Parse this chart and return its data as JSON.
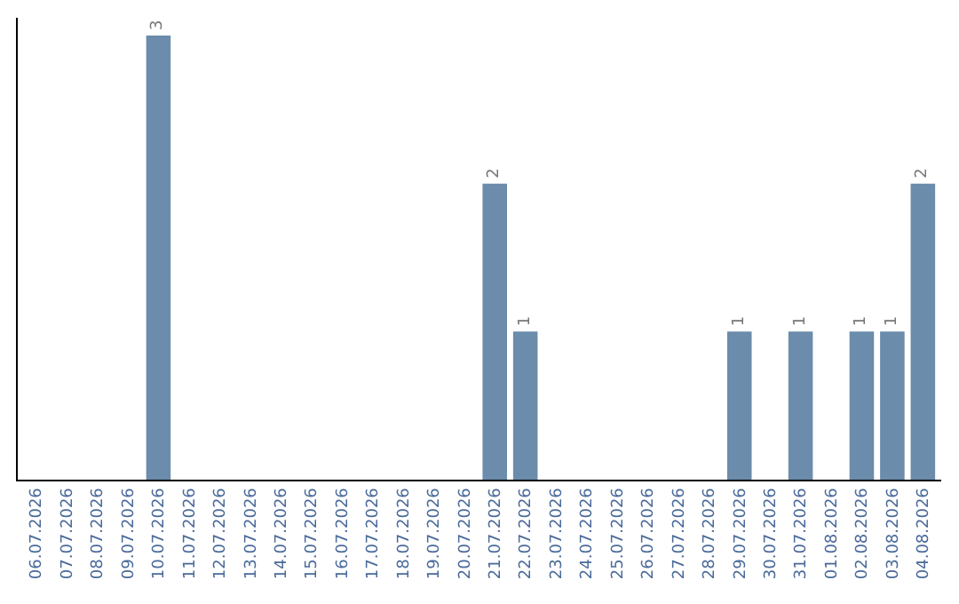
{
  "chart_data": {
    "type": "bar",
    "categories": [
      "06.07.2026",
      "07.07.2026",
      "08.07.2026",
      "09.07.2026",
      "10.07.2026",
      "11.07.2026",
      "12.07.2026",
      "13.07.2026",
      "14.07.2026",
      "15.07.2026",
      "16.07.2026",
      "17.07.2026",
      "18.07.2026",
      "19.07.2026",
      "20.07.2026",
      "21.07.2026",
      "22.07.2026",
      "23.07.2026",
      "24.07.2026",
      "25.07.2026",
      "26.07.2026",
      "27.07.2026",
      "28.07.2026",
      "29.07.2026",
      "30.07.2026",
      "31.07.2026",
      "01.08.2026",
      "02.08.2026",
      "03.08.2026",
      "04.08.2026"
    ],
    "values": [
      0,
      0,
      0,
      0,
      3,
      0,
      0,
      0,
      0,
      0,
      0,
      0,
      0,
      0,
      0,
      2,
      1,
      0,
      0,
      0,
      0,
      0,
      0,
      1,
      0,
      1,
      0,
      1,
      1,
      2
    ],
    "value_labels": [
      null,
      null,
      null,
      null,
      "3",
      null,
      null,
      null,
      null,
      null,
      null,
      null,
      null,
      null,
      null,
      "2",
      "1",
      null,
      null,
      null,
      null,
      null,
      null,
      "1",
      null,
      "1",
      null,
      "1",
      "1",
      "2"
    ],
    "color": "#6b8cab",
    "tick_labels": "x",
    "legend": false
  }
}
